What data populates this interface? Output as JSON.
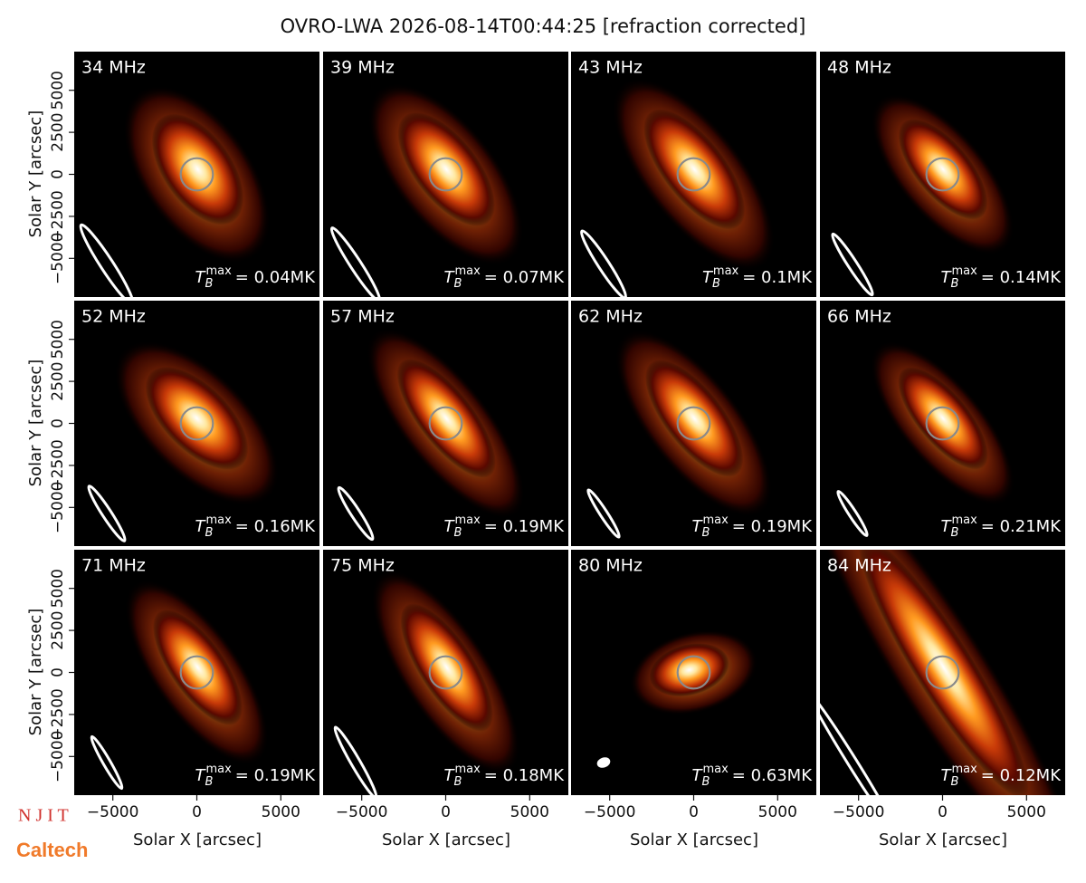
{
  "chart_data": {
    "type": "image_grid",
    "title": "OVRO-LWA 2026-08-14T00:44:25 [refraction corrected]",
    "xlabel": "Solar X [arcsec]",
    "ylabel": "Solar Y [arcsec]",
    "xlim": [
      -7300,
      7300
    ],
    "ylim": [
      -7300,
      7300
    ],
    "xticks": [
      {
        "value": -5000,
        "label": "−5000"
      },
      0,
      5000
    ],
    "yticks": [
      {
        "value": -5000,
        "label": "−5000"
      },
      {
        "value": -2500,
        "label": "−2500"
      },
      0,
      2500,
      5000
    ],
    "tmax_symbol": {
      "base": "T",
      "sub": "B",
      "sup": "max"
    },
    "panels": [
      {
        "label": "34 MHz",
        "tmax": "= 0.04MK"
      },
      {
        "label": "39 MHz",
        "tmax": "= 0.07MK"
      },
      {
        "label": "43 MHz",
        "tmax": "= 0.1MK"
      },
      {
        "label": "48 MHz",
        "tmax": "= 0.14MK"
      },
      {
        "label": "52 MHz",
        "tmax": "= 0.16MK"
      },
      {
        "label": "57 MHz",
        "tmax": "= 0.19MK"
      },
      {
        "label": "62 MHz",
        "tmax": "= 0.19MK"
      },
      {
        "label": "66 MHz",
        "tmax": "= 0.21MK"
      },
      {
        "label": "71 MHz",
        "tmax": "= 0.19MK"
      },
      {
        "label": "75 MHz",
        "tmax": "= 0.18MK"
      },
      {
        "label": "80 MHz",
        "tmax": "= 0.63MK"
      },
      {
        "label": "84 MHz",
        "tmax": "= 0.12MK"
      }
    ]
  },
  "logos": [
    "N J I T",
    "Caltech"
  ]
}
